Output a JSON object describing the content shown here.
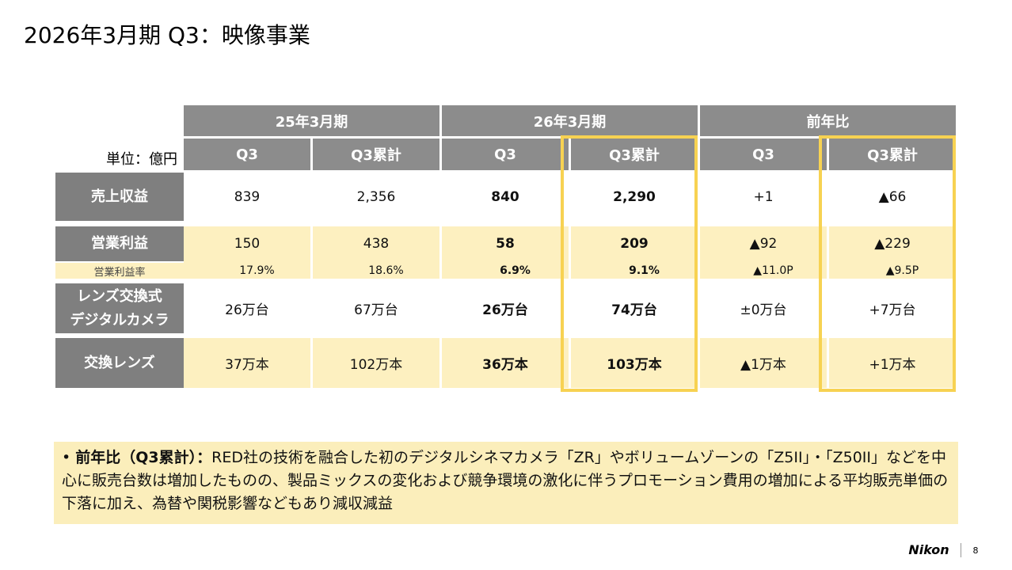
{
  "header": {
    "title": "2026年3月期 Q3：映像事業"
  },
  "table": {
    "unit": "単位：億円",
    "groups": [
      "25年3月期",
      "26年3月期",
      "前年比"
    ],
    "columns": [
      "Q3",
      "Q3累計",
      "Q3",
      "Q3累計",
      "Q3",
      "Q3累計"
    ],
    "rows": [
      {
        "label": [
          "売上収益"
        ],
        "cells": [
          "839",
          "2,356",
          "840",
          "2,290",
          "+1",
          "▲66"
        ]
      },
      {
        "label": [
          "営業利益"
        ],
        "cells": [
          "150",
          "438",
          "58",
          "209",
          "▲92",
          "▲229"
        ],
        "sub_label": "営業利益率",
        "sub_cells": [
          "17.9%",
          "18.6%",
          "6.9%",
          "9.1%",
          "▲11.0P",
          "▲9.5P"
        ]
      },
      {
        "label": [
          "レンズ交換式",
          "デジタルカメラ"
        ],
        "cells": [
          "26万台",
          "67万台",
          "26万台",
          "74万台",
          "±0万台",
          "+7万台"
        ]
      },
      {
        "label": [
          "交換レンズ"
        ],
        "cells": [
          "37万本",
          "102万本",
          "36万本",
          "103万本",
          "▲1万本",
          "+1万本"
        ]
      }
    ]
  },
  "note": {
    "heading": "前年比（Q3累計）：",
    "text": "RED社の技術を融合した初のデジタルシネマカメラ「ZR」やボリュームゾーンの「Z5II」・「Z50II」などを中心に販売台数は増加したものの、製品ミックスの変化および競争環境の激化に伴うプロモーション費用の増加による平均販売単価の下落に加え、為替や関税影響などもあり減収減益"
  },
  "footer": {
    "logo": "Nikon",
    "page": "8"
  }
}
